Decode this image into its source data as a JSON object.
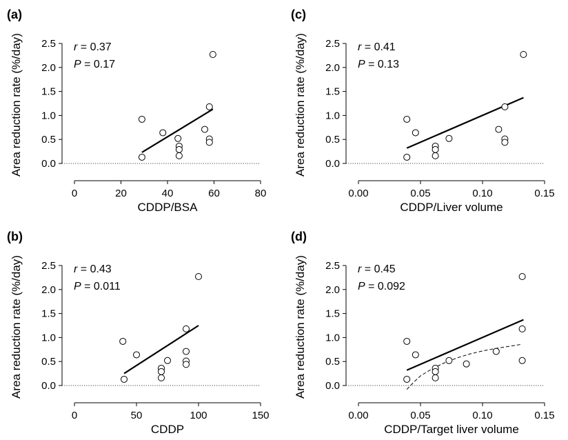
{
  "chart_data": [
    {
      "panel": "(a)",
      "type": "scatter",
      "xlabel": "CDDP/BSA",
      "ylabel": "Area reduction rate (%/day)",
      "xlim": [
        0,
        80
      ],
      "ylim": [
        0,
        2.5
      ],
      "xticks": [
        "0",
        "20",
        "40",
        "60",
        "80"
      ],
      "yticks": [
        "0.0",
        "0.5",
        "1.0",
        "1.5",
        "2.0",
        "2.5"
      ],
      "stat_r": "0.37",
      "stat_p": "0.17",
      "points": [
        [
          29,
          0.13
        ],
        [
          29,
          0.92
        ],
        [
          38,
          0.64
        ],
        [
          44.5,
          0.52
        ],
        [
          45,
          0.36
        ],
        [
          45,
          0.29
        ],
        [
          45,
          0.16
        ],
        [
          56,
          0.71
        ],
        [
          58,
          1.18
        ],
        [
          58,
          0.51
        ],
        [
          58,
          0.44
        ],
        [
          59.5,
          2.27
        ]
      ],
      "fit": [
        [
          29,
          0.23
        ],
        [
          59.5,
          1.13
        ]
      ],
      "zero_line": true
    },
    {
      "panel": "(b)",
      "type": "scatter",
      "xlabel": "CDDP",
      "ylabel": "Area reduction rate (%/day)",
      "xlim": [
        0,
        150
      ],
      "ylim": [
        0,
        2.5
      ],
      "xticks": [
        "0",
        "50",
        "100",
        "150"
      ],
      "yticks": [
        "0.0",
        "0.5",
        "1.0",
        "1.5",
        "2.0",
        "2.5"
      ],
      "stat_r": "0.43",
      "stat_p": "0.011",
      "points": [
        [
          40,
          0.13
        ],
        [
          39,
          0.92
        ],
        [
          50,
          0.64
        ],
        [
          75,
          0.52
        ],
        [
          70,
          0.36
        ],
        [
          70,
          0.29
        ],
        [
          70,
          0.16
        ],
        [
          90,
          0.71
        ],
        [
          90,
          1.18
        ],
        [
          90,
          0.51
        ],
        [
          90,
          0.44
        ],
        [
          100,
          2.27
        ]
      ],
      "fit": [
        [
          40,
          0.25
        ],
        [
          100,
          1.25
        ]
      ],
      "zero_line": true
    },
    {
      "panel": "(c)",
      "type": "scatter",
      "xlabel": "CDDP/Liver volume",
      "ylabel": "Area reduction rate (%/day)",
      "xlim": [
        0,
        0.15
      ],
      "ylim": [
        0,
        2.5
      ],
      "xticks": [
        "0.00",
        "0.05",
        "0.10",
        "0.15"
      ],
      "yticks": [
        "0.0",
        "0.5",
        "1.0",
        "1.5",
        "2.0",
        "2.5"
      ],
      "stat_r": "0.41",
      "stat_p": "0.13",
      "points": [
        [
          0.039,
          0.13
        ],
        [
          0.039,
          0.92
        ],
        [
          0.046,
          0.64
        ],
        [
          0.062,
          0.36
        ],
        [
          0.062,
          0.29
        ],
        [
          0.062,
          0.16
        ],
        [
          0.073,
          0.52
        ],
        [
          0.113,
          0.71
        ],
        [
          0.118,
          1.18
        ],
        [
          0.118,
          0.51
        ],
        [
          0.118,
          0.44
        ],
        [
          0.133,
          2.27
        ]
      ],
      "fit": [
        [
          0.039,
          0.32
        ],
        [
          0.133,
          1.37
        ]
      ],
      "zero_line": true
    },
    {
      "panel": "(d)",
      "type": "scatter",
      "xlabel": "CDDP/Target liver volume",
      "ylabel": "Area reduction rate (%/day)",
      "xlim": [
        0,
        0.15
      ],
      "ylim": [
        0,
        2.5
      ],
      "xticks": [
        "0.00",
        "0.05",
        "0.10",
        "0.15"
      ],
      "yticks": [
        "0.0",
        "0.5",
        "1.0",
        "1.5",
        "2.0",
        "2.5"
      ],
      "stat_r": "0.45",
      "stat_p": "0.092",
      "points": [
        [
          0.039,
          0.13
        ],
        [
          0.039,
          0.92
        ],
        [
          0.046,
          0.64
        ],
        [
          0.062,
          0.36
        ],
        [
          0.062,
          0.29
        ],
        [
          0.062,
          0.16
        ],
        [
          0.073,
          0.52
        ],
        [
          0.087,
          0.45
        ],
        [
          0.111,
          0.71
        ],
        [
          0.132,
          1.18
        ],
        [
          0.132,
          0.52
        ],
        [
          0.132,
          2.27
        ]
      ],
      "fit": [
        [
          0.039,
          0.32
        ],
        [
          0.133,
          1.37
        ]
      ],
      "curve": [
        [
          0.039,
          -0.08
        ],
        [
          0.045,
          0.08
        ],
        [
          0.05,
          0.2
        ],
        [
          0.06,
          0.36
        ],
        [
          0.07,
          0.48
        ],
        [
          0.08,
          0.58
        ],
        [
          0.09,
          0.66
        ],
        [
          0.1,
          0.72
        ],
        [
          0.11,
          0.77
        ],
        [
          0.12,
          0.81
        ],
        [
          0.132,
          0.86
        ]
      ],
      "zero_line": true
    }
  ]
}
